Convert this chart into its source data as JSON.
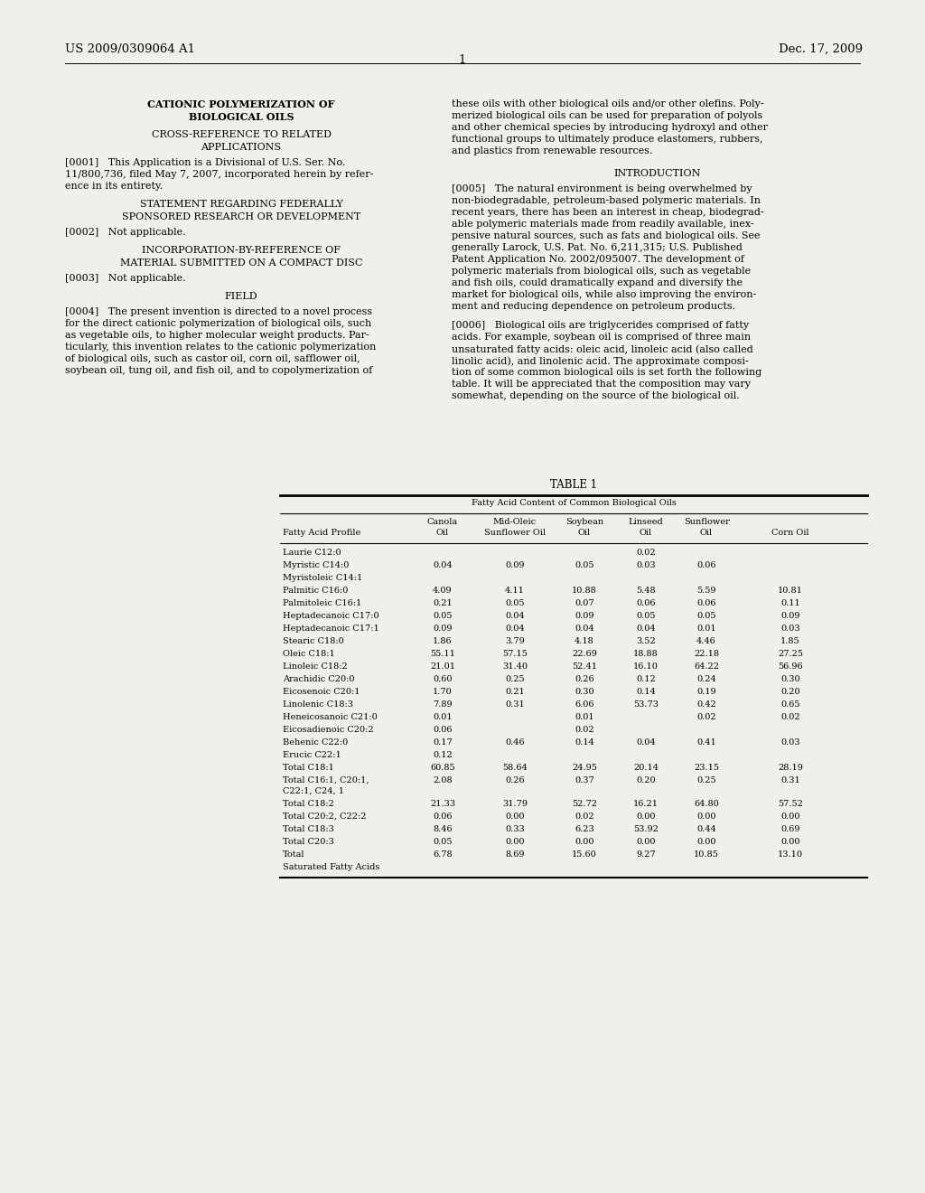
{
  "header_left": "US 2009/0309064 A1",
  "header_right": "Dec. 17, 2009",
  "page_number": "1",
  "bg_color": "#f0f0eb",
  "table_rows": [
    [
      "Laurie C12:0",
      "",
      "",
      "",
      "0.02",
      "",
      ""
    ],
    [
      "Myristic C14:0",
      "0.04",
      "0.09",
      "0.05",
      "0.03",
      "0.06",
      ""
    ],
    [
      "Myristoleic C14:1",
      "",
      "",
      "",
      "",
      "",
      ""
    ],
    [
      "Palmitic C16:0",
      "4.09",
      "4.11",
      "10.88",
      "5.48",
      "5.59",
      "10.81"
    ],
    [
      "Palmitoleic C16:1",
      "0.21",
      "0.05",
      "0.07",
      "0.06",
      "0.06",
      "0.11"
    ],
    [
      "Heptadecanoic C17:0",
      "0.05",
      "0.04",
      "0.09",
      "0.05",
      "0.05",
      "0.09"
    ],
    [
      "Heptadecanoic C17:1",
      "0.09",
      "0.04",
      "0.04",
      "0.04",
      "0.01",
      "0.03"
    ],
    [
      "Stearic C18:0",
      "1.86",
      "3.79",
      "4.18",
      "3.52",
      "4.46",
      "1.85"
    ],
    [
      "Oleic C18:1",
      "55.11",
      "57.15",
      "22.69",
      "18.88",
      "22.18",
      "27.25"
    ],
    [
      "Linoleic C18:2",
      "21.01",
      "31.40",
      "52.41",
      "16.10",
      "64.22",
      "56.96"
    ],
    [
      "Arachidic C20:0",
      "0.60",
      "0.25",
      "0.26",
      "0.12",
      "0.24",
      "0.30"
    ],
    [
      "Eicosenoic C20:1",
      "1.70",
      "0.21",
      "0.30",
      "0.14",
      "0.19",
      "0.20"
    ],
    [
      "Linolenic C18:3",
      "7.89",
      "0.31",
      "6.06",
      "53.73",
      "0.42",
      "0.65"
    ],
    [
      "Heneicosanoic C21:0",
      "0.01",
      "",
      "0.01",
      "",
      "0.02",
      "0.02"
    ],
    [
      "Eicosadienoic C20:2",
      "0.06",
      "",
      "0.02",
      "",
      "",
      ""
    ],
    [
      "Behenic C22:0",
      "0.17",
      "0.46",
      "0.14",
      "0.04",
      "0.41",
      "0.03"
    ],
    [
      "Erucic C22:1",
      "0.12",
      "",
      "",
      "",
      "",
      ""
    ],
    [
      "Total C18:1",
      "60.85",
      "58.64",
      "24.95",
      "20.14",
      "23.15",
      "28.19"
    ],
    [
      "Total C16:1, C20:1,\nC22:1, C24, 1",
      "2.08",
      "0.26",
      "0.37",
      "0.20",
      "0.25",
      "0.31"
    ],
    [
      "Total C18:2",
      "21.33",
      "31.79",
      "52.72",
      "16.21",
      "64.80",
      "57.52"
    ],
    [
      "Total C20:2, C22:2",
      "0.06",
      "0.00",
      "0.02",
      "0.00",
      "0.00",
      "0.00"
    ],
    [
      "Total C18:3",
      "8.46",
      "0.33",
      "6.23",
      "53.92",
      "0.44",
      "0.69"
    ],
    [
      "Total C20:3",
      "0.05",
      "0.00",
      "0.00",
      "0.00",
      "0.00",
      "0.00"
    ],
    [
      "Total",
      "6.78",
      "8.69",
      "15.60",
      "9.27",
      "10.85",
      "13.10"
    ],
    [
      "Saturated Fatty Acids",
      "",
      "",
      "",
      "",
      "",
      ""
    ]
  ]
}
